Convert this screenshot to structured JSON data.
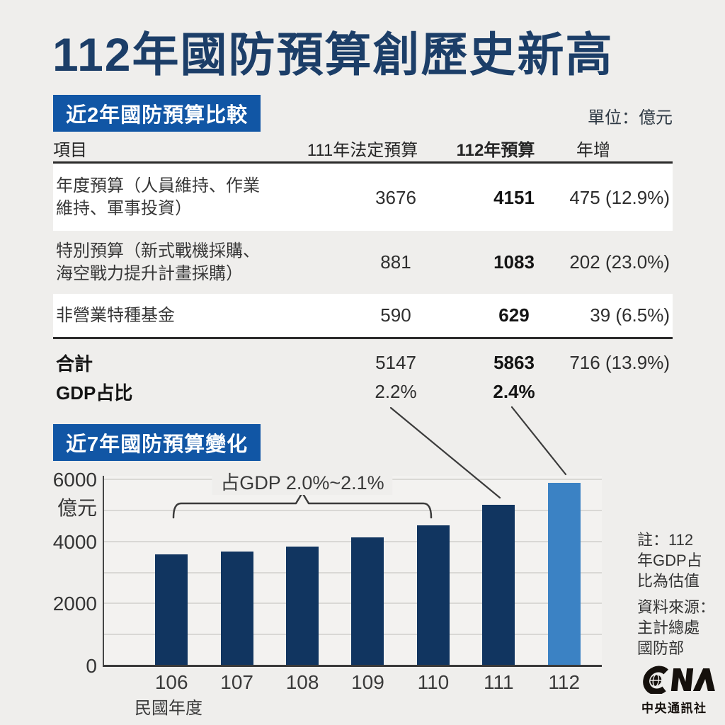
{
  "header": {
    "title": "112年國防預算創歷史新高"
  },
  "table": {
    "section_title": "近2年國防預算比較",
    "unit": "單位：億元",
    "headers": [
      "項目",
      "111年法定預算",
      "112年預算",
      "年增"
    ],
    "rows": [
      {
        "item": "年度預算（人員維持、作業\n維持、軍事投資）",
        "y111": "3676",
        "y112": "4151",
        "growth": "475 (12.9%)"
      },
      {
        "item": "特別預算（新式戰機採購、\n海空戰力提升計畫採購）",
        "y111": "881",
        "y112": "1083",
        "growth": "202 (23.0%)"
      },
      {
        "item": "非營業特種基金",
        "y111": "590",
        "y112": "629",
        "growth": "39 (6.5%)"
      }
    ],
    "totals": {
      "label": "合計",
      "y111": "5147",
      "y112": "5863",
      "growth": "716 (13.9%)"
    },
    "gdp": {
      "label": "GDP占比",
      "y111": "2.2%",
      "y112": "2.4%"
    }
  },
  "chart_data": {
    "type": "bar",
    "title": "近7年國防預算變化",
    "categories": [
      "106",
      "107",
      "108",
      "109",
      "110",
      "111",
      "112"
    ],
    "values": [
      3570,
      3650,
      3815,
      4100,
      4490,
      5147,
      5863
    ],
    "xlabel": "民國年度",
    "ylabel": "億元",
    "ylim": [
      0,
      6000
    ],
    "yticks": [
      0,
      2000,
      4000,
      6000
    ],
    "gridline_interval": 1000,
    "grid": true,
    "annotation": "占GDP 2.0%~2.1%",
    "annotation_span": [
      "106",
      "110"
    ],
    "highlight_index": 6,
    "bar_color": "#113560",
    "highlight_color": "#3b82c4",
    "leader_lines": [
      {
        "from_value": "2.2%",
        "to_category": "111"
      },
      {
        "from_value": "2.4%",
        "to_category": "112"
      }
    ]
  },
  "notes": {
    "note": "註：112\n年GDP占\n比為估值",
    "source": "資料來源：\n主計總處\n國防部"
  },
  "logo": {
    "mark": "CNA",
    "name": "中央通訊社"
  },
  "colors": {
    "page_bg": "#efeeec",
    "title_navy": "#1c3e68",
    "band_blue": "#1156a5",
    "bar_dark": "#113560",
    "bar_light": "#3b82c4"
  }
}
